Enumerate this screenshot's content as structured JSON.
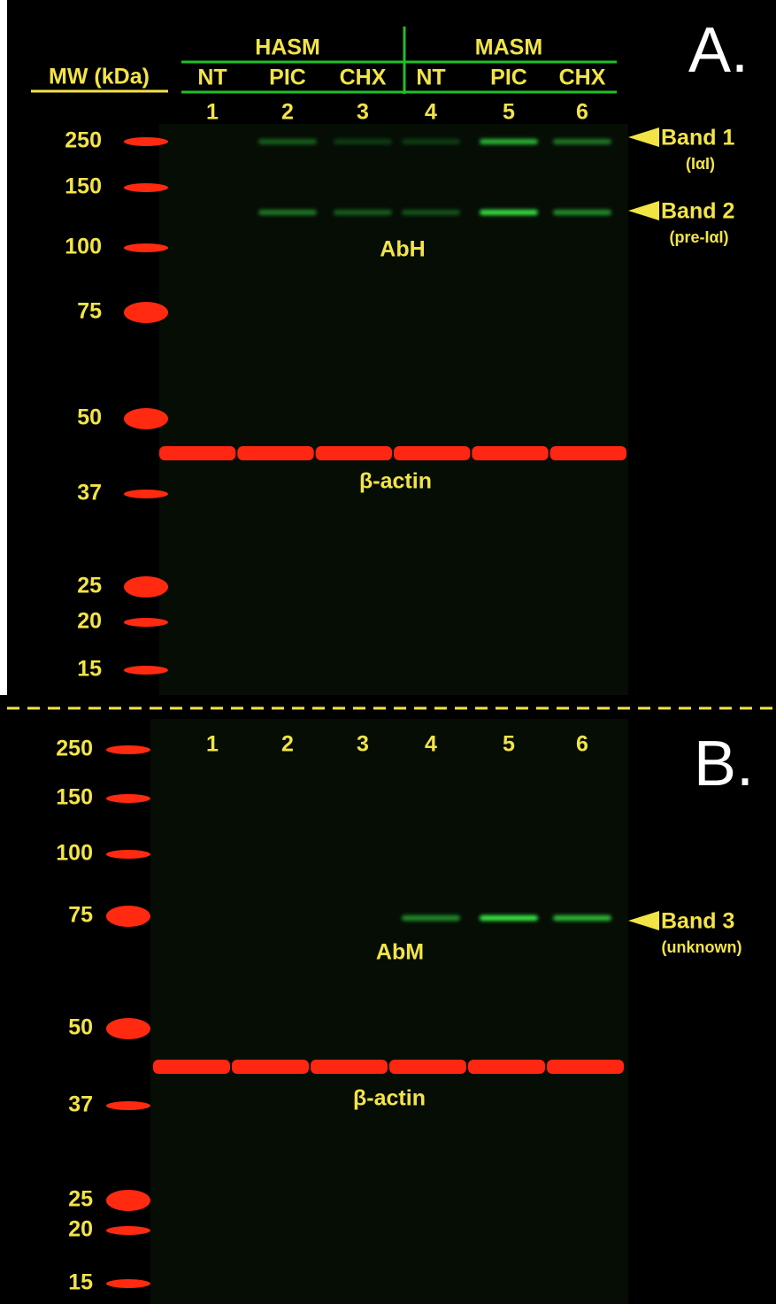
{
  "panel_a": {
    "label": "A.",
    "mw_header": "MW (kDa)",
    "groups": [
      "HASM",
      "MASM"
    ],
    "conditions": [
      "NT",
      "PIC",
      "CHX",
      "NT",
      "PIC",
      "CHX"
    ],
    "lanes": [
      1,
      2,
      3,
      4,
      5,
      6
    ],
    "mw_markers": [
      250,
      150,
      100,
      75,
      50,
      37,
      25,
      20,
      15
    ],
    "bands": [
      {
        "name": "Band 1",
        "note": "(IαI)"
      },
      {
        "name": "Band 2",
        "note": "(pre-IαI)"
      }
    ],
    "antibody": "AbH",
    "loading_control": "β-actin"
  },
  "panel_b": {
    "label": "B.",
    "lanes": [
      1,
      2,
      3,
      4,
      5,
      6
    ],
    "mw_markers": [
      250,
      150,
      100,
      75,
      50,
      37,
      25,
      20,
      15
    ],
    "bands": [
      {
        "name": "Band 3",
        "note": "(unknown)"
      }
    ],
    "antibody": "AbM",
    "loading_control": "β-actin"
  }
}
